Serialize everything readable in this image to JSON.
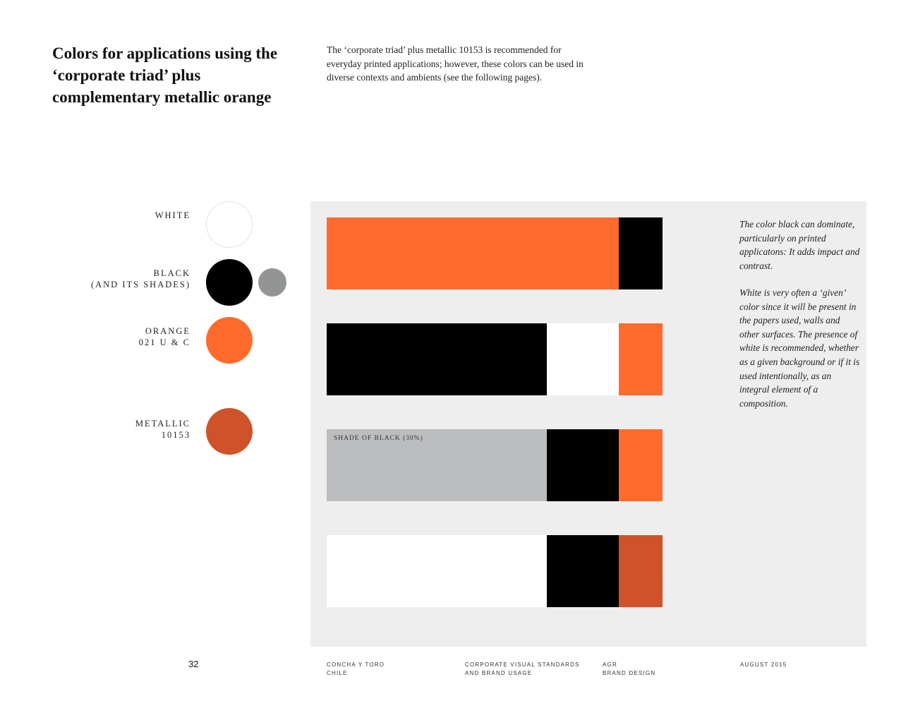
{
  "heading": {
    "title": "Colors for applications using the ‘corporate triad’ plus complementary metallic orange",
    "intro": "The ‘corporate triad’ plus metallic 10153 is recommended for everyday printed applications; however, these colors can be used in diverse contexts and ambients (see the following pages)."
  },
  "swatches": [
    {
      "label_1": "WHITE",
      "label_2": "",
      "color": "#ffffff"
    },
    {
      "label_1": "BLACK",
      "label_2": "(AND ITS SHADES)",
      "color": "#000000",
      "shade_color": "#939496"
    },
    {
      "label_1": "ORANGE",
      "label_2": "021 U & C",
      "color": "#ff6b2d"
    },
    {
      "label_1": "METALLIC",
      "label_2": "10153",
      "color": "#cf522a"
    }
  ],
  "combinations": [
    {
      "segments": [
        {
          "color": "#ff6b2d",
          "share": 0.87
        },
        {
          "color": "#000000",
          "share": 0.13
        }
      ]
    },
    {
      "segments": [
        {
          "color": "#000000",
          "share": 0.655
        },
        {
          "color": "#ffffff",
          "share": 0.215
        },
        {
          "color": "#ff6b2d",
          "share": 0.13
        }
      ]
    },
    {
      "segments": [
        {
          "color": "#bcbdbe",
          "share": 0.655,
          "label": "SHADE OF BLACK (30%)"
        },
        {
          "color": "#000000",
          "share": 0.215
        },
        {
          "color": "#ff6b2d",
          "share": 0.13
        }
      ]
    },
    {
      "segments": [
        {
          "color": "#ffffff",
          "share": 0.655
        },
        {
          "color": "#000000",
          "share": 0.215
        },
        {
          "color": "#cf522a",
          "share": 0.13
        }
      ]
    }
  ],
  "notes": {
    "black": "The color black can dominate, particularly on printed applicatons: It adds impact and contrast.",
    "white": "White is very often a ‘given’ color since it will be present in the papers used, walls and other surfaces. The presence of white is recommended, whether as a given background or if it is used intentionally, as an integral element of a composition."
  },
  "footer": {
    "page_number": "32",
    "company_1": "CONCHA Y TORO",
    "company_2": "CHILE",
    "doc_1": "CORPORATE VISUAL STANDARDS",
    "doc_2": "AND BRAND USAGE",
    "agency_1": "AGR",
    "agency_2": "BRAND DESIGN",
    "date": "AUGUST 2015"
  }
}
